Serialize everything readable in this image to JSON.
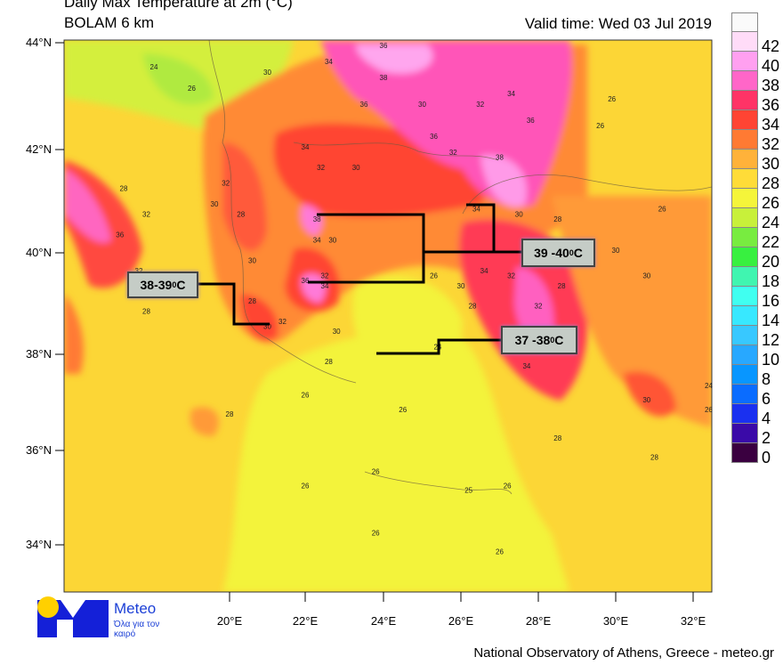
{
  "header": {
    "title": "Daily Max Temperature at 2m (°C)",
    "model": "BOLAM 6 km",
    "valid_time": "Valid time: Wed 03 Jul 2019"
  },
  "map": {
    "lat_ticks": [
      "44°N",
      "42°N",
      "40°N",
      "38°N",
      "36°N",
      "34°N"
    ],
    "lon_ticks": [
      "20°E",
      "22°E",
      "24°E",
      "26°E",
      "28°E",
      "30°E",
      "32°E"
    ],
    "contour_labels": [
      {
        "t": "24",
        "lon": 18.0,
        "lat": 43.5
      },
      {
        "t": "26",
        "lon": 19.0,
        "lat": 43.1
      },
      {
        "t": "30",
        "lon": 21.0,
        "lat": 43.4
      },
      {
        "t": "34",
        "lon": 22.6,
        "lat": 43.6
      },
      {
        "t": "36",
        "lon": 24.0,
        "lat": 43.9
      },
      {
        "t": "38",
        "lon": 24.0,
        "lat": 43.3
      },
      {
        "t": "36",
        "lon": 23.5,
        "lat": 42.8
      },
      {
        "t": "30",
        "lon": 25.0,
        "lat": 42.8
      },
      {
        "t": "32",
        "lon": 26.5,
        "lat": 42.8
      },
      {
        "t": "34",
        "lon": 27.3,
        "lat": 43.0
      },
      {
        "t": "36",
        "lon": 27.8,
        "lat": 42.5
      },
      {
        "t": "26",
        "lon": 29.9,
        "lat": 42.9
      },
      {
        "t": "34",
        "lon": 22.0,
        "lat": 42.0
      },
      {
        "t": "32",
        "lon": 22.4,
        "lat": 41.6
      },
      {
        "t": "30",
        "lon": 23.3,
        "lat": 41.6
      },
      {
        "t": "36",
        "lon": 25.3,
        "lat": 42.2
      },
      {
        "t": "32",
        "lon": 25.8,
        "lat": 41.9
      },
      {
        "t": "38",
        "lon": 27.0,
        "lat": 41.8
      },
      {
        "t": "28",
        "lon": 17.2,
        "lat": 41.2
      },
      {
        "t": "32",
        "lon": 17.8,
        "lat": 40.7
      },
      {
        "t": "36",
        "lon": 17.1,
        "lat": 40.3
      },
      {
        "t": "32",
        "lon": 19.9,
        "lat": 41.3
      },
      {
        "t": "30",
        "lon": 19.6,
        "lat": 40.9
      },
      {
        "t": "28",
        "lon": 20.3,
        "lat": 40.7
      },
      {
        "t": "38",
        "lon": 22.3,
        "lat": 40.6
      },
      {
        "t": "34",
        "lon": 22.3,
        "lat": 40.2
      },
      {
        "t": "30",
        "lon": 22.7,
        "lat": 40.2
      },
      {
        "t": "36",
        "lon": 22.0,
        "lat": 39.4
      },
      {
        "t": "32",
        "lon": 22.5,
        "lat": 39.5
      },
      {
        "t": "34",
        "lon": 22.5,
        "lat": 39.3
      },
      {
        "t": "30",
        "lon": 20.6,
        "lat": 39.8
      },
      {
        "t": "28",
        "lon": 20.6,
        "lat": 39.0
      },
      {
        "t": "30",
        "lon": 21.0,
        "lat": 38.5
      },
      {
        "t": "32",
        "lon": 21.4,
        "lat": 38.6
      },
      {
        "t": "30",
        "lon": 22.8,
        "lat": 38.4
      },
      {
        "t": "28",
        "lon": 22.6,
        "lat": 37.8
      },
      {
        "t": "26",
        "lon": 25.3,
        "lat": 39.5
      },
      {
        "t": "34",
        "lon": 26.4,
        "lat": 40.8
      },
      {
        "t": "30",
        "lon": 27.5,
        "lat": 40.7
      },
      {
        "t": "28",
        "lon": 28.5,
        "lat": 40.6
      },
      {
        "t": "34",
        "lon": 26.6,
        "lat": 39.6
      },
      {
        "t": "32",
        "lon": 27.3,
        "lat": 39.5
      },
      {
        "t": "30",
        "lon": 26.0,
        "lat": 39.3
      },
      {
        "t": "28",
        "lon": 26.3,
        "lat": 38.9
      },
      {
        "t": "24",
        "lon": 25.4,
        "lat": 38.1
      },
      {
        "t": "34",
        "lon": 27.7,
        "lat": 37.7
      },
      {
        "t": "32",
        "lon": 28.0,
        "lat": 38.9
      },
      {
        "t": "28",
        "lon": 28.6,
        "lat": 39.3
      },
      {
        "t": "30",
        "lon": 30.0,
        "lat": 40.0
      },
      {
        "t": "30",
        "lon": 30.8,
        "lat": 39.5
      },
      {
        "t": "26",
        "lon": 31.2,
        "lat": 40.8
      },
      {
        "t": "30",
        "lon": 30.8,
        "lat": 37.0
      },
      {
        "t": "24",
        "lon": 32.4,
        "lat": 37.3
      },
      {
        "t": "26",
        "lon": 32.4,
        "lat": 36.8
      },
      {
        "t": "28",
        "lon": 20.0,
        "lat": 36.7
      },
      {
        "t": "26",
        "lon": 24.5,
        "lat": 36.8
      },
      {
        "t": "28",
        "lon": 28.5,
        "lat": 36.2
      },
      {
        "t": "28",
        "lon": 31.0,
        "lat": 35.8
      },
      {
        "t": "26",
        "lon": 23.8,
        "lat": 35.5
      },
      {
        "t": "25",
        "lon": 26.2,
        "lat": 35.1
      },
      {
        "t": "26",
        "lon": 27.2,
        "lat": 35.2
      },
      {
        "t": "26",
        "lon": 22.0,
        "lat": 35.2
      },
      {
        "t": "26",
        "lon": 23.8,
        "lat": 34.2
      },
      {
        "t": "26",
        "lon": 27.0,
        "lat": 33.8
      },
      {
        "t": "28",
        "lon": 17.8,
        "lat": 38.8
      },
      {
        "t": "32",
        "lon": 17.6,
        "lat": 39.6
      },
      {
        "t": "26",
        "lon": 22.0,
        "lat": 37.1
      },
      {
        "t": "26",
        "lon": 29.6,
        "lat": 42.4
      }
    ]
  },
  "callouts": [
    {
      "label": "38-39 ",
      "unit": "0",
      "suffix": "C"
    },
    {
      "label": "39 -40 ",
      "unit": "0",
      "suffix": "C"
    },
    {
      "label": "37 -38 ",
      "unit": "0",
      "suffix": "C"
    }
  ],
  "colorbar": {
    "labels": [
      "42",
      "40",
      "38",
      "36",
      "34",
      "32",
      "30",
      "28",
      "26",
      "24",
      "22",
      "20",
      "18",
      "16",
      "14",
      "12",
      "10",
      "8",
      "6",
      "4",
      "2",
      "0"
    ],
    "colors": [
      "#fafafa",
      "#ffdcf8",
      "#ffa0f0",
      "#ff66c8",
      "#ff3366",
      "#ff4433",
      "#ff7a33",
      "#ffb23a",
      "#ffdc38",
      "#f5f53a",
      "#c8f03a",
      "#78ec40",
      "#38f040",
      "#40f5b0",
      "#40fff0",
      "#38e8ff",
      "#38c8ff",
      "#28a8ff",
      "#0896ff",
      "#0a6cff",
      "#1a30f0",
      "#3a0aa8",
      "#3a0040"
    ]
  },
  "logo": {
    "name": "Meteo",
    "slogan": "Όλα για τον καιρό"
  },
  "credit": "National Observatory of Athens, Greece - meteo.gr"
}
